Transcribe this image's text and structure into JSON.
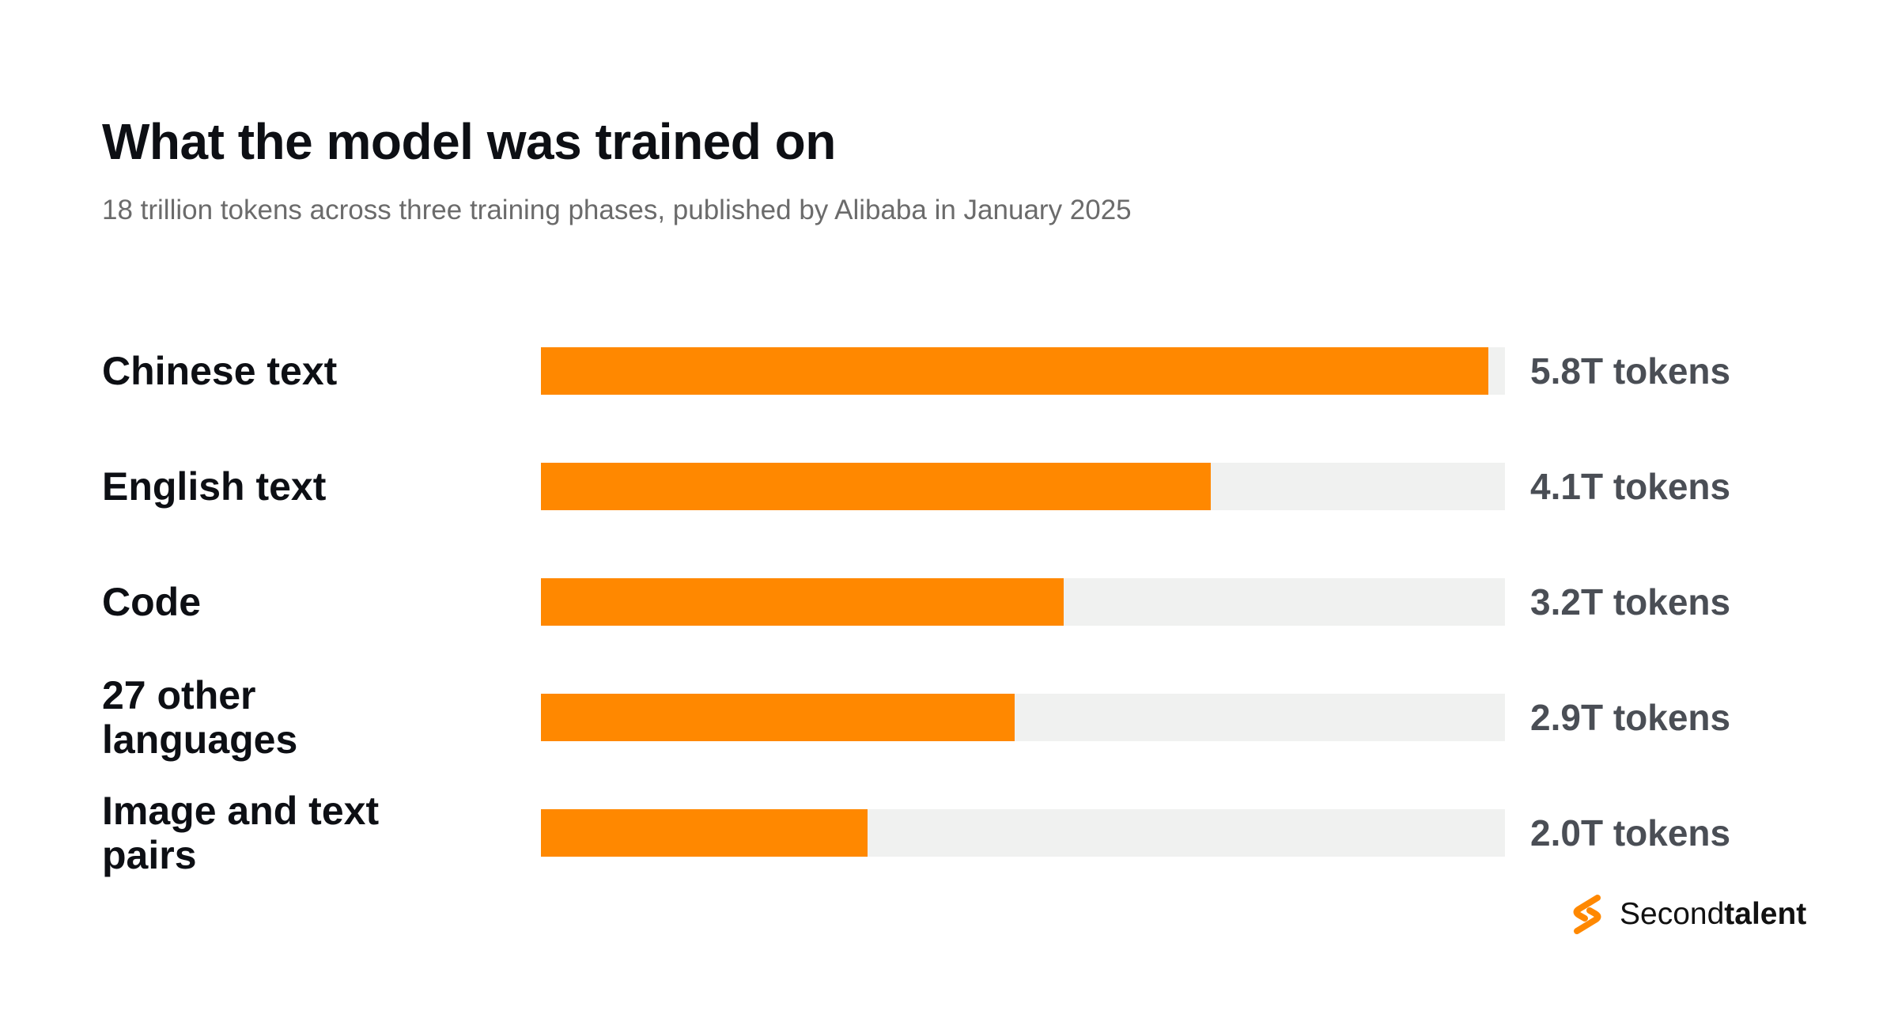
{
  "chart_data": {
    "type": "bar",
    "orientation": "horizontal",
    "title": "What the model was trained on",
    "subtitle": "18 trillion tokens across three training phases, published by Alibaba in January 2025",
    "categories": [
      "Chinese text",
      "English text",
      "Code",
      "27 other languages",
      "Image and text pairs"
    ],
    "values": [
      5.8,
      4.1,
      3.2,
      2.9,
      2.0
    ],
    "value_labels": [
      "5.8T tokens",
      "4.1T tokens",
      "3.2T tokens",
      "2.9T tokens",
      "2.0T tokens"
    ],
    "unit": "T tokens",
    "xlim": [
      0,
      5.9
    ],
    "grid": false,
    "legend": "none",
    "colors": {
      "bar": "#ff8800",
      "track": "#f0f1f0"
    }
  },
  "brand": {
    "name_light": "Second",
    "name_bold": "talent",
    "logo_icon": "secondtalent-s-logo-icon",
    "color": "#ff8800"
  }
}
